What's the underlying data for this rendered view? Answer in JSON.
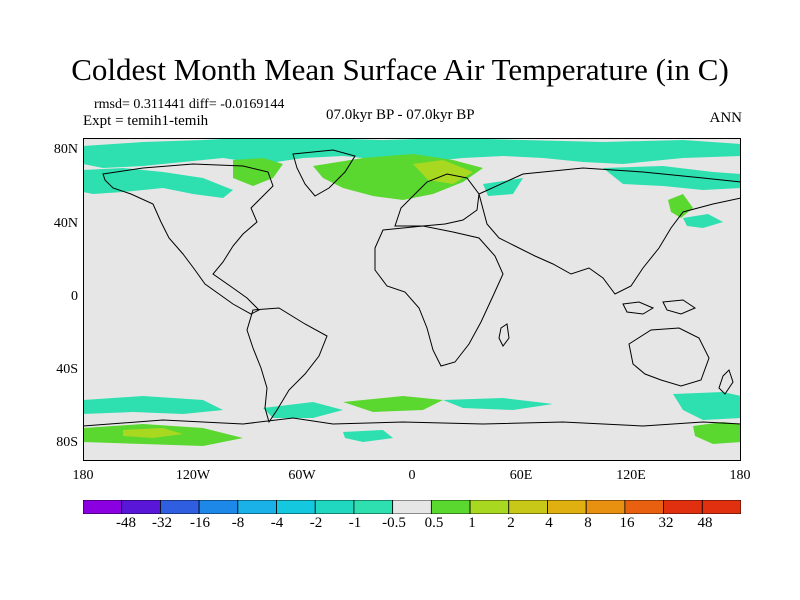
{
  "title": "Coldest Month Mean Surface Air Temperature (in C)",
  "stats": "rmsd= 0.311441 diff= -0.0169144",
  "experiment": "Expt = temih1-temih",
  "period": "07.0kyr BP - 07.0kyr BP",
  "season": "ANN",
  "lat_labels": [
    "80N",
    "40N",
    "0",
    "40S",
    "80S"
  ],
  "lat_values": [
    80,
    40,
    0,
    -40,
    -80
  ],
  "lon_labels": [
    "180",
    "120W",
    "60W",
    "0",
    "60E",
    "120E",
    "180"
  ],
  "lon_values": [
    -180,
    -120,
    -60,
    0,
    60,
    120,
    180
  ],
  "colorbar": {
    "labels": [
      "-48",
      "-32",
      "-16",
      "-8",
      "-4",
      "-2",
      "-1",
      "-0.5",
      "0.5",
      "1",
      "2",
      "4",
      "8",
      "16",
      "32",
      "48"
    ],
    "colors": [
      "#8a00e0",
      "#5a16d8",
      "#2f5fe0",
      "#1e88e8",
      "#1ab0e8",
      "#14c8e0",
      "#20d8c0",
      "#2ee0b0",
      "#e6e6e6",
      "#5ad830",
      "#a8d820",
      "#c8c818",
      "#e0b010",
      "#e89010",
      "#e86010",
      "#e03010"
    ]
  },
  "colors": {
    "background": "#e6e6e6",
    "cool": "#2ee0b0",
    "cooler": "#14c8e0",
    "warm": "#5ad830",
    "warmer": "#a8d820",
    "coast": "#000000"
  }
}
